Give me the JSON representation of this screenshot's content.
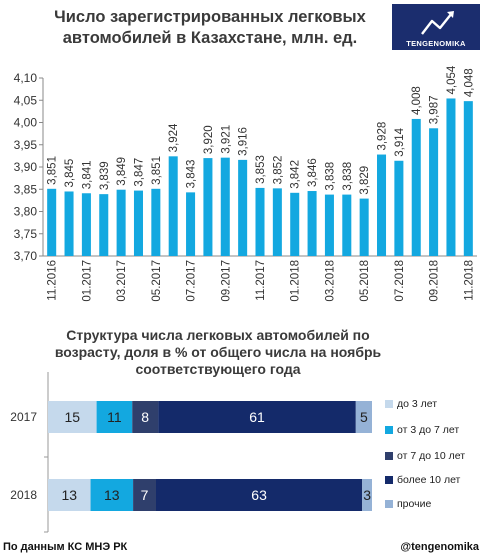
{
  "logo": {
    "name": "TENGENOMIKA"
  },
  "footer": {
    "source": "По данным КС МНЭ РК",
    "handle": "@tengenomika"
  },
  "colors": {
    "bar": "#13a8e0",
    "age_up_to_3": "#c5d9ec",
    "age_3_to_7": "#13a8e0",
    "age_7_to_10": "#2f3f6c",
    "age_over_10": "#142a6a",
    "age_other": "#95b2d6"
  },
  "chart_data": [
    {
      "type": "bar",
      "title": "Число зарегистрированных легковых автомобилей в Казахстане, млн. ед.",
      "categories": [
        "11.2016",
        "12.2016",
        "01.2017",
        "02.2017",
        "03.2017",
        "04.2017",
        "05.2017",
        "06.2017",
        "07.2017",
        "08.2017",
        "09.2017",
        "10.2017",
        "11.2017",
        "12.2017",
        "01.2018",
        "02.2018",
        "03.2018",
        "04.2018",
        "05.2018",
        "06.2018",
        "07.2018",
        "08.2018",
        "09.2018",
        "10.2018",
        "11.2018"
      ],
      "tick_labels": [
        "11.2016",
        "",
        "01.2017",
        "",
        "03.2017",
        "",
        "05.2017",
        "",
        "07.2017",
        "",
        "09.2017",
        "",
        "11.2017",
        "",
        "01.2018",
        "",
        "03.2018",
        "",
        "05.2018",
        "",
        "07.2018",
        "",
        "09.2018",
        "",
        "11.2018"
      ],
      "values": [
        3.851,
        3.845,
        3.841,
        3.839,
        3.849,
        3.847,
        3.851,
        3.924,
        3.843,
        3.92,
        3.921,
        3.916,
        3.853,
        3.852,
        3.842,
        3.846,
        3.838,
        3.838,
        3.829,
        3.928,
        3.914,
        4.008,
        3.987,
        4.054,
        4.048
      ],
      "value_labels": [
        "3,851",
        "3,845",
        "3,841",
        "3,839",
        "3,849",
        "3,847",
        "3,851",
        "3,924",
        "3,843",
        "3,920",
        "3,921",
        "3,916",
        "3,853",
        "3,852",
        "3,842",
        "3,846",
        "3,838",
        "3,838",
        "3,829",
        "3,928",
        "3,914",
        "4,008",
        "3,987",
        "4,054",
        "4,048"
      ],
      "ylim": [
        3.7,
        4.1
      ],
      "yticks": [
        "3,70",
        "3,75",
        "3,80",
        "3,85",
        "3,90",
        "3,95",
        "4,00",
        "4,05",
        "4,10"
      ],
      "grid": false
    },
    {
      "type": "bar",
      "orientation": "horizontal",
      "stacked": true,
      "title": "Структура числа легковых автомобилей по возрасту, доля в % от общего числа на ноябрь соответствующего года",
      "categories": [
        "2017",
        "2018"
      ],
      "series": [
        {
          "name": "до 3 лет",
          "values": [
            15,
            13
          ]
        },
        {
          "name": "от 3 до 7 лет",
          "values": [
            11,
            13
          ]
        },
        {
          "name": "от 7 до 10 лет",
          "values": [
            8,
            7
          ]
        },
        {
          "name": "более 10 лет",
          "values": [
            61,
            63
          ]
        },
        {
          "name": "прочие",
          "values": [
            5,
            3
          ]
        }
      ],
      "xlim": [
        0,
        100
      ],
      "legend": "right"
    }
  ]
}
